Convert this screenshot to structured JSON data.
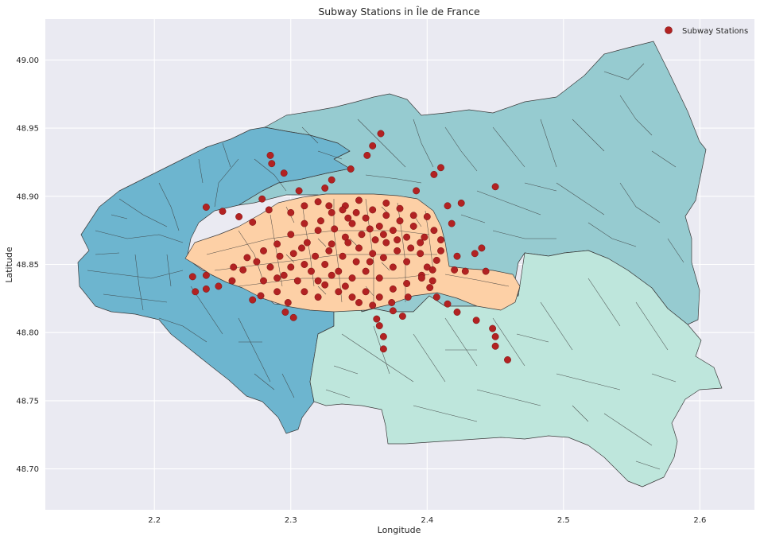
{
  "chart_data": {
    "type": "scatter",
    "title": "Subway Stations in Île de France",
    "xlabel": "Longitude",
    "ylabel": "Latitude",
    "xlim": [
      2.12,
      2.64
    ],
    "ylim": [
      48.67,
      49.03
    ],
    "xticks": [
      "2.2",
      "2.3",
      "2.4",
      "2.5",
      "2.6"
    ],
    "yticks": [
      "48.70",
      "48.75",
      "48.80",
      "48.85",
      "48.90",
      "48.95",
      "49.00"
    ],
    "grid": true,
    "legend": {
      "position": "top-right",
      "entries": [
        "Subway Stations"
      ]
    },
    "colors": {
      "background": "#eaeaf2",
      "grid": "#ffffff",
      "marker": "#b22222",
      "hauts_de_seine": "#6db5cf",
      "seine_saint_denis": "#96cbd0",
      "val_de_marne": "#bee6dc",
      "paris": "#fdd0a6",
      "borders": "#3a3a3a"
    },
    "series": [
      {
        "name": "Subway Stations",
        "points": [
          [
            2.366,
            48.946
          ],
          [
            2.36,
            48.937
          ],
          [
            2.356,
            48.93
          ],
          [
            2.344,
            48.92
          ],
          [
            2.285,
            48.93
          ],
          [
            2.286,
            48.924
          ],
          [
            2.295,
            48.917
          ],
          [
            2.41,
            48.921
          ],
          [
            2.405,
            48.916
          ],
          [
            2.45,
            48.907
          ],
          [
            2.33,
            48.912
          ],
          [
            2.325,
            48.906
          ],
          [
            2.306,
            48.904
          ],
          [
            2.392,
            48.904
          ],
          [
            2.279,
            48.898
          ],
          [
            2.238,
            48.892
          ],
          [
            2.25,
            48.889
          ],
          [
            2.262,
            48.885
          ],
          [
            2.272,
            48.881
          ],
          [
            2.284,
            48.89
          ],
          [
            2.415,
            48.893
          ],
          [
            2.425,
            48.895
          ],
          [
            2.418,
            48.88
          ],
          [
            2.44,
            48.862
          ],
          [
            2.435,
            48.858
          ],
          [
            2.422,
            48.856
          ],
          [
            2.42,
            48.846
          ],
          [
            2.428,
            48.845
          ],
          [
            2.443,
            48.845
          ],
          [
            2.228,
            48.841
          ],
          [
            2.238,
            48.842
          ],
          [
            2.258,
            48.848
          ],
          [
            2.257,
            48.838
          ],
          [
            2.23,
            48.83
          ],
          [
            2.238,
            48.832
          ],
          [
            2.247,
            48.834
          ],
          [
            2.272,
            48.824
          ],
          [
            2.278,
            48.827
          ],
          [
            2.298,
            48.822
          ],
          [
            2.296,
            48.815
          ],
          [
            2.302,
            48.811
          ],
          [
            2.407,
            48.826
          ],
          [
            2.415,
            48.821
          ],
          [
            2.422,
            48.815
          ],
          [
            2.436,
            48.809
          ],
          [
            2.448,
            48.803
          ],
          [
            2.45,
            48.797
          ],
          [
            2.45,
            48.79
          ],
          [
            2.459,
            48.78
          ],
          [
            2.363,
            48.81
          ],
          [
            2.365,
            48.805
          ],
          [
            2.368,
            48.797
          ],
          [
            2.368,
            48.788
          ],
          [
            2.375,
            48.816
          ],
          [
            2.382,
            48.812
          ],
          [
            2.396,
            48.842
          ],
          [
            2.4,
            48.848
          ],
          [
            2.407,
            48.853
          ],
          [
            2.404,
            48.838
          ],
          [
            2.402,
            48.833
          ],
          [
            2.33,
            48.865
          ],
          [
            2.34,
            48.87
          ],
          [
            2.35,
            48.862
          ],
          [
            2.36,
            48.858
          ],
          [
            2.37,
            48.866
          ],
          [
            2.345,
            48.88
          ],
          [
            2.355,
            48.884
          ],
          [
            2.365,
            48.878
          ],
          [
            2.375,
            48.875
          ],
          [
            2.385,
            48.87
          ],
          [
            2.395,
            48.866
          ],
          [
            2.32,
            48.875
          ],
          [
            2.31,
            48.88
          ],
          [
            2.3,
            48.872
          ],
          [
            2.29,
            48.865
          ],
          [
            2.28,
            48.86
          ],
          [
            2.275,
            48.852
          ],
          [
            2.285,
            48.848
          ],
          [
            2.295,
            48.842
          ],
          [
            2.305,
            48.838
          ],
          [
            2.315,
            48.845
          ],
          [
            2.325,
            48.85
          ],
          [
            2.335,
            48.845
          ],
          [
            2.345,
            48.84
          ],
          [
            2.355,
            48.845
          ],
          [
            2.365,
            48.84
          ],
          [
            2.375,
            48.848
          ],
          [
            2.385,
            48.852
          ],
          [
            2.395,
            48.858
          ],
          [
            2.325,
            48.835
          ],
          [
            2.335,
            48.83
          ],
          [
            2.345,
            48.826
          ],
          [
            2.355,
            48.83
          ],
          [
            2.365,
            48.826
          ],
          [
            2.375,
            48.832
          ],
          [
            2.385,
            48.836
          ],
          [
            2.31,
            48.83
          ],
          [
            2.32,
            48.826
          ],
          [
            2.33,
            48.888
          ],
          [
            2.34,
            48.893
          ],
          [
            2.35,
            48.897
          ],
          [
            2.36,
            48.89
          ],
          [
            2.37,
            48.886
          ],
          [
            2.38,
            48.891
          ],
          [
            2.39,
            48.886
          ],
          [
            2.3,
            48.888
          ],
          [
            2.31,
            48.893
          ],
          [
            2.32,
            48.896
          ],
          [
            2.405,
            48.875
          ],
          [
            2.41,
            48.868
          ],
          [
            2.41,
            48.86
          ],
          [
            2.265,
            48.846
          ],
          [
            2.268,
            48.855
          ],
          [
            2.28,
            48.838
          ],
          [
            2.29,
            48.83
          ],
          [
            2.338,
            48.856
          ],
          [
            2.348,
            48.852
          ],
          [
            2.358,
            48.852
          ],
          [
            2.368,
            48.855
          ],
          [
            2.342,
            48.866
          ],
          [
            2.352,
            48.872
          ],
          [
            2.362,
            48.868
          ],
          [
            2.332,
            48.876
          ],
          [
            2.342,
            48.884
          ],
          [
            2.322,
            48.882
          ],
          [
            2.312,
            48.866
          ],
          [
            2.302,
            48.858
          ],
          [
            2.292,
            48.856
          ],
          [
            2.378,
            48.86
          ],
          [
            2.388,
            48.862
          ],
          [
            2.398,
            48.87
          ],
          [
            2.39,
            48.878
          ],
          [
            2.38,
            48.882
          ],
          [
            2.37,
            48.895
          ],
          [
            2.396,
            48.84
          ],
          [
            2.386,
            48.826
          ],
          [
            2.374,
            48.822
          ],
          [
            2.36,
            48.82
          ],
          [
            2.35,
            48.822
          ],
          [
            2.34,
            48.834
          ],
          [
            2.33,
            48.842
          ],
          [
            2.32,
            48.838
          ],
          [
            2.31,
            48.85
          ],
          [
            2.3,
            48.848
          ],
          [
            2.29,
            48.84
          ],
          [
            2.328,
            48.86
          ],
          [
            2.318,
            48.856
          ],
          [
            2.308,
            48.862
          ],
          [
            2.358,
            48.876
          ],
          [
            2.368,
            48.872
          ],
          [
            2.378,
            48.868
          ],
          [
            2.348,
            48.888
          ],
          [
            2.338,
            48.89
          ],
          [
            2.328,
            48.893
          ],
          [
            2.404,
            48.846
          ],
          [
            2.4,
            48.885
          ]
        ]
      }
    ]
  }
}
